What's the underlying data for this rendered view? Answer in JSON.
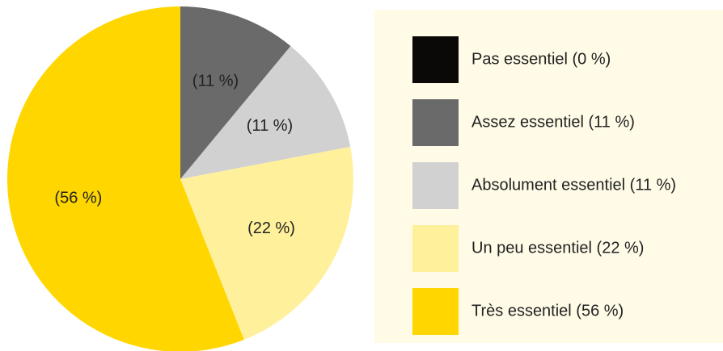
{
  "chart_data": {
    "type": "pie",
    "categories": [
      "Pas essentiel (0 %)",
      "Assez essentiel (11 %)",
      "Absolument essentiel (11 %)",
      "Un peu essentiel (22 %)",
      "Très essentiel (56 %)"
    ],
    "values": [
      0,
      11,
      11,
      22,
      56
    ],
    "value_labels": [
      null,
      "(11 %)",
      "(11 %)",
      "(22 %)",
      "(56 %)"
    ],
    "colors": [
      "#0b0808",
      "#6a6a6a",
      "#d2d1d1",
      "#fff09c",
      "#ffd600"
    ],
    "legend": "right"
  }
}
